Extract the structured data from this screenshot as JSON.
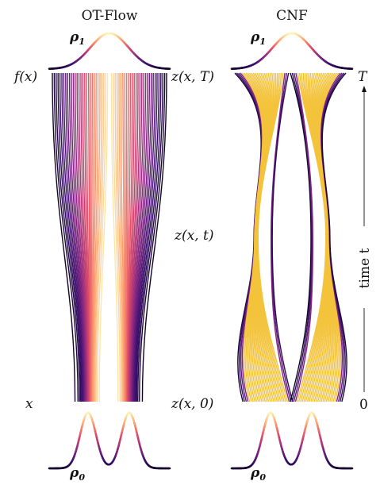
{
  "titles": {
    "left": "OT-Flow",
    "right": "CNF"
  },
  "labels": {
    "f_x": "f(x)",
    "x": "x",
    "z_x_T": "z(x, T)",
    "z_x_t": "z(x, t)",
    "z_x_0": "z(x, 0)",
    "rho1_base": "ρ",
    "rho1_sub": "1",
    "rho0_base": "ρ",
    "rho0_sub": "0",
    "time_axis": "time t",
    "time_top": "T",
    "time_bottom": "0"
  },
  "colors": {
    "colormap": "inferno",
    "stops": [
      "#000004",
      "#3b0f70",
      "#8c2981",
      "#de4968",
      "#fe9f6d",
      "#fcfdbf"
    ],
    "gold": "#f3c33b",
    "axis": "#111111"
  }
}
